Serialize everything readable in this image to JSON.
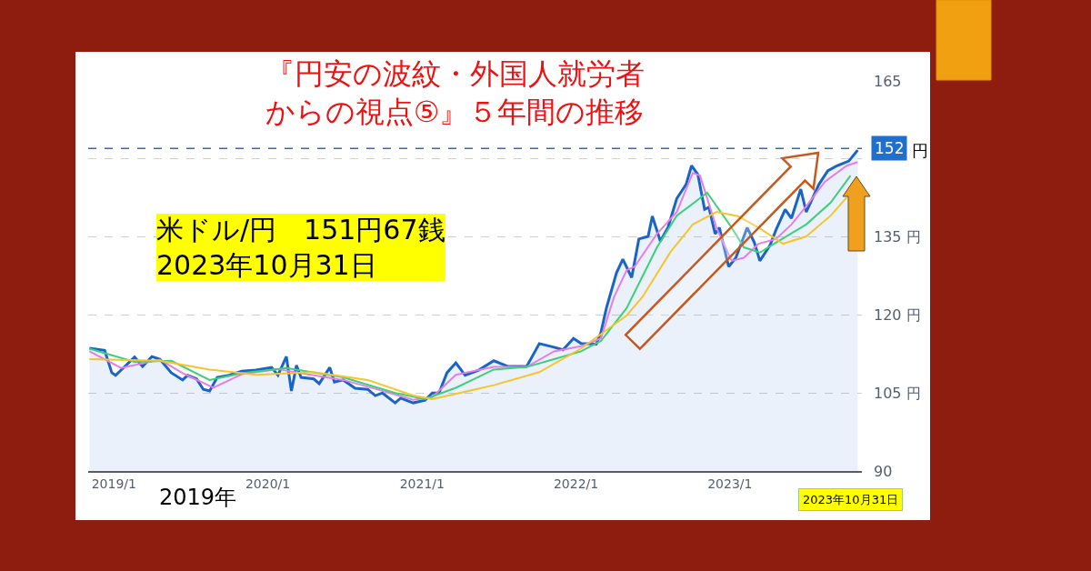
{
  "chart_data": {
    "type": "line",
    "title": "『円安の波紋・外国人就労者からの視点⑤』５年間の推移",
    "annotations": [
      "米ドル/円　151円67銭\n2023年10月31日",
      "2019年",
      "2023年10月31日",
      "円"
    ],
    "xlim": [
      "2018-11-01",
      "2023-11-10"
    ],
    "xticks": [
      {
        "value": "2019-01-01",
        "label": "2019/1"
      },
      {
        "value": "2020-01-01",
        "label": "2020/1"
      },
      {
        "value": "2021-01-01",
        "label": "2021/1"
      },
      {
        "value": "2022-01-01",
        "label": "2022/1"
      },
      {
        "value": "2023-01-01",
        "label": "2023/1"
      }
    ],
    "ylim": [
      90,
      165
    ],
    "yticks": [
      90,
      {
        "value": 105,
        "label": "105 円"
      },
      {
        "value": 120,
        "label": "120 円"
      },
      {
        "value": 135,
        "label": "135 円"
      },
      {
        "value": 150,
        "label": null
      },
      165
    ],
    "grid": "y",
    "marker": "none",
    "line_style": "solid",
    "ref_lines": [
      {
        "axis": "y",
        "value": 152,
        "label": "152",
        "color": "#1f6fcf",
        "line_style": "dashed"
      }
    ],
    "series": [
      {
        "type": "area",
        "color": "#1a64c8",
        "x": [
          "2018-11-04",
          "2018-12-10",
          "2018-12-27",
          "2019-01-05",
          "2019-01-18",
          "2019-02-19",
          "2019-03-10",
          "2019-04-01",
          "2019-04-20",
          "2019-05-17",
          "2019-06-13",
          "2019-06-25",
          "2019-07-16",
          "2019-08-01",
          "2019-08-16",
          "2019-09-03",
          "2019-10-01",
          "2019-10-31",
          "2019-12-04",
          "2020-01-10",
          "2020-01-25",
          "2020-02-14",
          "2020-02-26",
          "2020-03-09",
          "2020-03-20",
          "2020-04-19",
          "2020-05-02",
          "2020-05-27",
          "2020-06-07",
          "2020-06-28",
          "2020-07-26",
          "2020-08-25",
          "2020-09-12",
          "2020-09-29",
          "2020-10-29",
          "2020-11-11",
          "2020-12-11",
          "2021-01-08",
          "2021-01-25",
          "2021-02-10",
          "2021-03-01",
          "2021-03-22",
          "2021-04-13",
          "2021-05-15",
          "2021-06-20",
          "2021-07-24",
          "2021-09-06",
          "2021-10-06",
          "2021-11-10",
          "2021-12-01",
          "2021-12-26",
          "2022-01-13",
          "2022-02-18",
          "2022-03-01",
          "2022-03-14",
          "2022-04-07",
          "2022-04-22",
          "2022-05-13",
          "2022-05-30",
          "2022-06-21",
          "2022-07-01",
          "2022-07-20",
          "2022-08-07",
          "2022-08-28",
          "2022-09-19",
          "2022-10-02",
          "2022-10-17",
          "2022-11-02",
          "2022-11-12",
          "2022-11-27",
          "2022-12-07",
          "2022-12-29",
          "2023-01-15",
          "2023-02-11",
          "2023-02-28",
          "2023-03-13",
          "2023-04-06",
          "2023-04-20",
          "2023-05-12",
          "2023-05-27",
          "2023-06-18",
          "2023-07-01",
          "2023-07-31",
          "2023-08-21",
          "2023-09-12",
          "2023-10-10",
          "2023-10-31"
        ],
        "values": [
          113.6,
          113.2,
          108.9,
          108.4,
          109.4,
          111.9,
          110.1,
          112.0,
          111.5,
          108.9,
          107.5,
          108.4,
          107.7,
          105.7,
          105.4,
          108.0,
          108.4,
          109.2,
          109.4,
          109.9,
          108.4,
          112.0,
          105.4,
          110.3,
          108.0,
          107.7,
          106.8,
          109.9,
          107.1,
          107.5,
          105.9,
          105.7,
          104.5,
          105.0,
          103.1,
          104.0,
          103.1,
          103.6,
          105.0,
          105.0,
          108.9,
          110.8,
          108.4,
          109.4,
          111.2,
          110.1,
          110.1,
          114.5,
          113.8,
          113.3,
          115.5,
          114.5,
          114.4,
          116.6,
          121.3,
          128.1,
          130.7,
          127.2,
          134.6,
          135.1,
          139.0,
          134.2,
          136.8,
          142.4,
          145.1,
          148.7,
          147.0,
          140.3,
          140.7,
          135.6,
          136.8,
          129.3,
          131.0,
          136.8,
          133.9,
          130.4,
          133.4,
          136.3,
          140.3,
          138.6,
          144.2,
          139.8,
          145.1,
          147.7,
          148.7,
          149.6,
          151.7
        ]
      },
      {
        "color": "#e87de8",
        "x": [
          "2018-11-04",
          "2019-01-18",
          "2019-04-20",
          "2019-06-13",
          "2019-08-25",
          "2019-10-31",
          "2020-01-25",
          "2020-03-20",
          "2020-06-28",
          "2020-09-12",
          "2020-12-11",
          "2021-01-25",
          "2021-03-22",
          "2021-06-20",
          "2021-09-06",
          "2021-11-10",
          "2022-01-13",
          "2022-03-01",
          "2022-04-01",
          "2022-05-01",
          "2022-05-20",
          "2022-07-12",
          "2022-08-28",
          "2022-10-05",
          "2022-10-22",
          "2022-11-30",
          "2023-01-05",
          "2023-02-03",
          "2023-03-10",
          "2023-04-20",
          "2023-05-27",
          "2023-07-01",
          "2023-08-14",
          "2023-10-05",
          "2023-10-31"
        ],
        "values": [
          113.0,
          109.8,
          111.4,
          108.8,
          106.0,
          108.6,
          109.6,
          108.8,
          107.5,
          105.8,
          103.7,
          104.2,
          108.5,
          110.0,
          110.0,
          113.0,
          114.0,
          115.5,
          123.4,
          128.6,
          129.3,
          135.6,
          139.8,
          147.3,
          146.8,
          136.8,
          130.4,
          131.0,
          133.7,
          134.6,
          137.4,
          140.9,
          145.6,
          148.7,
          149.4
        ]
      },
      {
        "color": "#3ecf7a",
        "x": [
          "2018-11-04",
          "2019-02-19",
          "2019-05-17",
          "2019-08-16",
          "2019-10-31",
          "2020-02-14",
          "2020-06-28",
          "2020-10-29",
          "2021-01-08",
          "2021-03-22",
          "2021-06-20",
          "2021-09-06",
          "2021-11-10",
          "2022-01-13",
          "2022-03-01",
          "2022-05-01",
          "2022-07-12",
          "2022-08-28",
          "2022-11-08",
          "2023-01-05",
          "2023-02-03",
          "2023-03-13",
          "2023-04-20",
          "2023-07-01",
          "2023-08-28",
          "2023-10-14"
        ],
        "values": [
          113.5,
          111.0,
          111.2,
          107.5,
          108.8,
          109.8,
          108.0,
          105.0,
          103.8,
          106.0,
          109.5,
          110.0,
          111.5,
          113.0,
          115.0,
          121.3,
          133.0,
          139.1,
          143.5,
          136.8,
          133.0,
          132.0,
          133.9,
          137.4,
          141.6,
          146.8
        ]
      },
      {
        "color": "#f5c52c",
        "x": [
          "2018-11-04",
          "2019-04-20",
          "2019-08-16",
          "2019-12-04",
          "2020-04-19",
          "2020-08-25",
          "2020-12-11",
          "2021-01-25",
          "2021-06-20",
          "2021-10-06",
          "2022-01-14",
          "2022-05-01",
          "2022-06-07",
          "2022-08-13",
          "2022-10-05",
          "2022-11-30",
          "2023-01-20",
          "2023-03-10",
          "2023-05-07",
          "2023-07-01",
          "2023-08-28",
          "2023-10-05"
        ],
        "values": [
          111.5,
          111.2,
          109.5,
          108.5,
          109.0,
          107.5,
          104.5,
          103.8,
          106.5,
          109.0,
          113.6,
          119.9,
          123.4,
          132.1,
          137.4,
          139.8,
          139.0,
          136.8,
          133.7,
          135.1,
          139.1,
          142.6
        ]
      }
    ]
  }
}
